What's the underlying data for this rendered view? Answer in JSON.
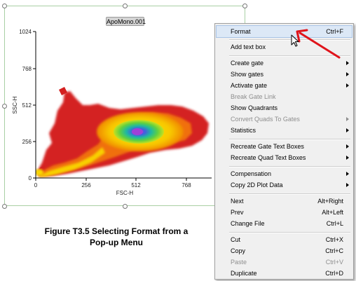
{
  "plot": {
    "title": "ApoMono.001",
    "xlabel": "FSC-H",
    "ylabel": "SSC-H",
    "xticks": [
      "0",
      "256",
      "512",
      "768"
    ],
    "yticks": [
      "1024",
      "768",
      "512",
      "256",
      "0"
    ]
  },
  "chart_data": {
    "type": "heatmap",
    "title": "ApoMono.001",
    "xlabel": "FSC-H",
    "ylabel": "SSC-H",
    "xlim": [
      0,
      1024
    ],
    "ylim": [
      0,
      1024
    ],
    "xticks": [
      0,
      256,
      512,
      768
    ],
    "yticks": [
      0,
      256,
      512,
      768,
      1024
    ],
    "densest_region": {
      "x": 520,
      "y": 260
    }
  },
  "caption": {
    "line1": "Figure T3.5 Selecting Format from a",
    "line2": "Pop-up Menu"
  },
  "menu": {
    "items": [
      {
        "label": "Format",
        "shortcut": "Ctrl+F",
        "highlighted": true
      },
      {
        "label": "Add text box"
      },
      {
        "label": "Create gate",
        "submenu": true
      },
      {
        "label": "Show gates",
        "submenu": true
      },
      {
        "label": "Activate gate",
        "submenu": true
      },
      {
        "label": "Break Gate Link",
        "disabled": true
      },
      {
        "label": "Show Quadrants"
      },
      {
        "label": "Convert Quads To Gates",
        "disabled": true,
        "submenu": true
      },
      {
        "label": "Statistics",
        "submenu": true
      },
      {
        "label": "Recreate Gate Text Boxes",
        "submenu": true
      },
      {
        "label": "Recreate Quad Text Boxes",
        "submenu": true
      },
      {
        "label": "Compensation",
        "submenu": true
      },
      {
        "label": "Copy 2D Plot Data",
        "submenu": true
      },
      {
        "label": "Next",
        "shortcut": "Alt+Right"
      },
      {
        "label": "Prev",
        "shortcut": "Alt+Left"
      },
      {
        "label": "Change File",
        "shortcut": "Ctrl+L"
      },
      {
        "label": "Cut",
        "shortcut": "Ctrl+X"
      },
      {
        "label": "Copy",
        "shortcut": "Ctrl+C"
      },
      {
        "label": "Paste",
        "shortcut": "Ctrl+V",
        "disabled": true
      },
      {
        "label": "Duplicate",
        "shortcut": "Ctrl+D"
      }
    ]
  },
  "colors": {
    "accent_arrow": "#e0141b",
    "menu_highlight": "#dce8f6",
    "density_low": "#d42020",
    "density_mid": "#f5e800",
    "density_high": "#20b8a0",
    "density_peak": "#a040d8"
  }
}
